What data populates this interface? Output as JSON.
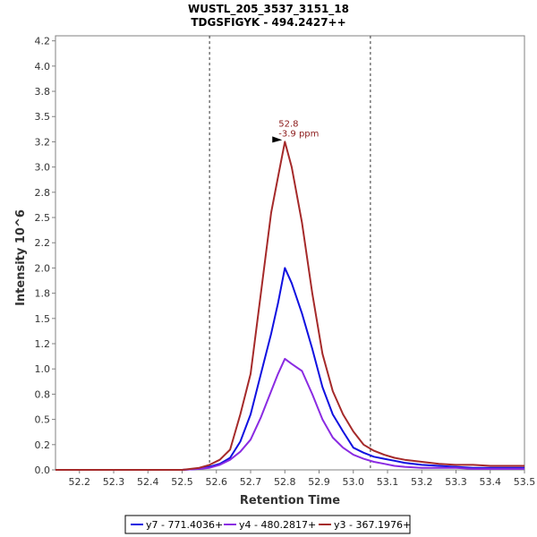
{
  "chart_data": {
    "type": "line",
    "title": "WUSTL_205_3537_3151_18",
    "subtitle": "TDGSFIGYK - 494.2427++",
    "xlabel": "Retention Time",
    "ylabel": "Intensity 10^6",
    "xlim": [
      52.13,
      53.5
    ],
    "ylim": [
      0,
      4.3
    ],
    "x_ticks": [
      "52.2",
      "52.3",
      "52.4",
      "52.5",
      "52.6",
      "52.7",
      "52.8",
      "52.9",
      "53.0",
      "53.1",
      "53.2",
      "53.3",
      "53.4",
      "53.5"
    ],
    "y_ticks": [
      "0.0",
      "0.2",
      "0.5",
      "0.8",
      "1.0",
      "1.2",
      "1.5",
      "1.8",
      "2.0",
      "2.2",
      "2.5",
      "2.8",
      "3.0",
      "3.2",
      "3.5",
      "3.8",
      "4.0",
      "4.2"
    ],
    "boundaries": [
      52.58,
      53.05
    ],
    "annotation": {
      "x": 52.8,
      "y": 3.25,
      "line1": "52.8",
      "line2": "-3.9 ppm",
      "color": "#8b1a1a"
    },
    "legend_position": "bottom",
    "series": [
      {
        "name": "y7 - 771.4036+",
        "color": "#1010e0",
        "x": [
          52.13,
          52.5,
          52.55,
          52.58,
          52.61,
          52.64,
          52.67,
          52.7,
          52.73,
          52.76,
          52.78,
          52.8,
          52.82,
          52.85,
          52.88,
          52.91,
          52.94,
          52.97,
          53.0,
          53.03,
          53.06,
          53.09,
          53.12,
          53.15,
          53.2,
          53.25,
          53.3,
          53.35,
          53.4,
          53.45,
          53.5
        ],
        "y": [
          0.0,
          0.0,
          0.01,
          0.03,
          0.06,
          0.12,
          0.28,
          0.55,
          0.95,
          1.35,
          1.65,
          2.0,
          1.85,
          1.55,
          1.2,
          0.82,
          0.55,
          0.38,
          0.22,
          0.17,
          0.13,
          0.11,
          0.09,
          0.07,
          0.05,
          0.04,
          0.03,
          0.02,
          0.02,
          0.02,
          0.02
        ]
      },
      {
        "name": "y4 - 480.2817+",
        "color": "#8a2be2",
        "x": [
          52.13,
          52.5,
          52.55,
          52.58,
          52.61,
          52.64,
          52.67,
          52.7,
          52.73,
          52.76,
          52.78,
          52.8,
          52.82,
          52.85,
          52.88,
          52.91,
          52.94,
          52.97,
          53.0,
          53.03,
          53.06,
          53.09,
          53.12,
          53.15,
          53.2,
          53.25,
          53.3,
          53.35,
          53.4,
          53.45,
          53.5
        ],
        "y": [
          0.0,
          0.0,
          0.01,
          0.02,
          0.05,
          0.1,
          0.18,
          0.3,
          0.52,
          0.78,
          0.95,
          1.1,
          1.05,
          0.98,
          0.75,
          0.5,
          0.32,
          0.22,
          0.15,
          0.11,
          0.08,
          0.06,
          0.04,
          0.03,
          0.02,
          0.02,
          0.02,
          0.01,
          0.01,
          0.01,
          0.01
        ]
      },
      {
        "name": "y3 - 367.1976+",
        "color": "#a52a2a",
        "x": [
          52.13,
          52.5,
          52.55,
          52.58,
          52.61,
          52.64,
          52.67,
          52.7,
          52.73,
          52.76,
          52.78,
          52.8,
          52.82,
          52.85,
          52.88,
          52.91,
          52.94,
          52.97,
          53.0,
          53.03,
          53.06,
          53.09,
          53.12,
          53.15,
          53.2,
          53.25,
          53.3,
          53.35,
          53.4,
          53.45,
          53.5
        ],
        "y": [
          0.0,
          0.0,
          0.02,
          0.05,
          0.1,
          0.2,
          0.55,
          0.95,
          1.75,
          2.55,
          2.9,
          3.25,
          3.0,
          2.45,
          1.75,
          1.15,
          0.78,
          0.55,
          0.38,
          0.25,
          0.19,
          0.15,
          0.12,
          0.1,
          0.08,
          0.06,
          0.05,
          0.05,
          0.04,
          0.04,
          0.04
        ]
      }
    ]
  }
}
